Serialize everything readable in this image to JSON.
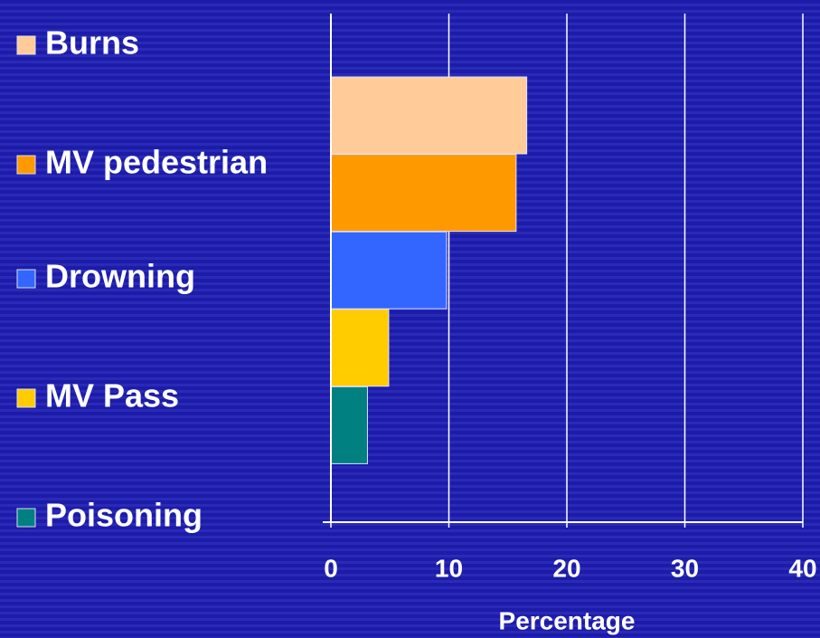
{
  "chart_data": {
    "type": "bar",
    "orientation": "horizontal",
    "xlabel": "Percentage",
    "series": [
      {
        "name": "Burns",
        "color": "#ffcc99",
        "values": [
          16.6
        ]
      },
      {
        "name": "MV pedestrian",
        "color": "#ff9900",
        "values": [
          15.7
        ]
      },
      {
        "name": "Drowning",
        "color": "#3366ff",
        "values": [
          9.8
        ]
      },
      {
        "name": "MV Pass",
        "color": "#ffcc00",
        "values": [
          4.9
        ]
      },
      {
        "name": "Poisoning",
        "color": "#008080",
        "values": [
          3.1
        ]
      }
    ],
    "xlim": [
      0,
      40
    ],
    "xticks": [
      0,
      10,
      20,
      30,
      40
    ],
    "grid": true,
    "legend": "left"
  }
}
